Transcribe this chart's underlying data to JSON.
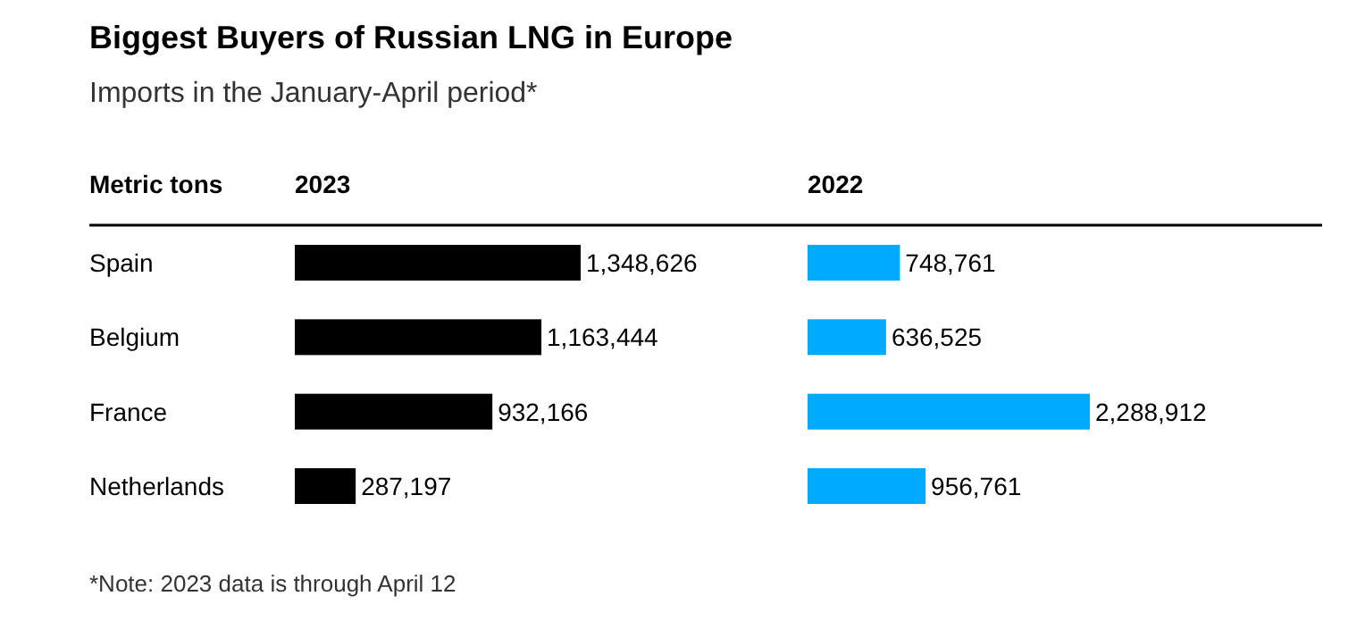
{
  "chart_data": [
    {
      "type": "bar",
      "orientation": "horizontal",
      "title": "Biggest Buyers of Russian LNG in Europe",
      "subtitle": "Imports in the January-April period*",
      "ylabel": "Metric tons",
      "xlabel": "2023",
      "categories": [
        "Spain",
        "Belgium",
        "France",
        "Netherlands"
      ],
      "values": [
        1348626,
        1163444,
        932166,
        287197
      ],
      "value_labels": [
        "1,348,626",
        "1,163,444",
        "932,166",
        "287,197"
      ],
      "color": "#000000",
      "annotations": [
        "*Note: 2023 data is through April 12"
      ]
    },
    {
      "type": "bar",
      "orientation": "horizontal",
      "xlabel": "2022",
      "values": [
        748761,
        636525,
        2288912,
        956761
      ],
      "value_labels": [
        "748,761",
        "636,525",
        "2,288,912",
        "956,761"
      ],
      "color": "#00aaff"
    }
  ]
}
